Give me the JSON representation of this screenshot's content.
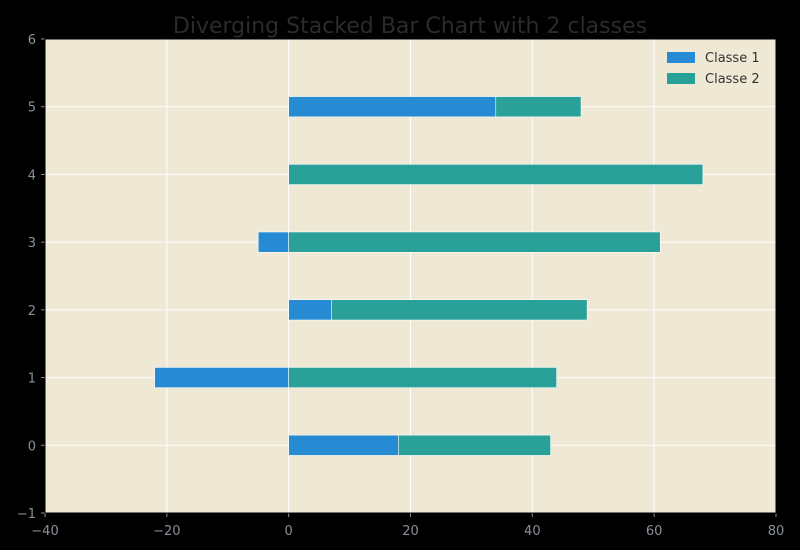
{
  "chart_data": {
    "type": "bar",
    "orientation": "horizontal",
    "stacking": "diverging",
    "title": "Diverging Stacked Bar Chart with 2 classes",
    "xlabel": "",
    "ylabel": "",
    "xlim": [
      -40,
      80
    ],
    "ylim": [
      -1,
      6
    ],
    "xticks": [
      "-40",
      "-20",
      "0",
      "20",
      "40",
      "60",
      "80"
    ],
    "yticks": [
      "-1",
      "0",
      "1",
      "2",
      "3",
      "4",
      "5",
      "6"
    ],
    "categories": [
      0,
      1,
      2,
      3,
      4,
      5
    ],
    "series": [
      {
        "name": "Classe 1",
        "color": "#268bd2",
        "values": [
          18,
          -22,
          7,
          -5,
          0,
          34
        ]
      },
      {
        "name": "Classe 2",
        "color": "#2aa198",
        "values": [
          25,
          44,
          42,
          61,
          68,
          14
        ]
      }
    ],
    "grid": true,
    "legend": "top-right",
    "background": "#eee8d5",
    "frame_color": "#000000"
  }
}
